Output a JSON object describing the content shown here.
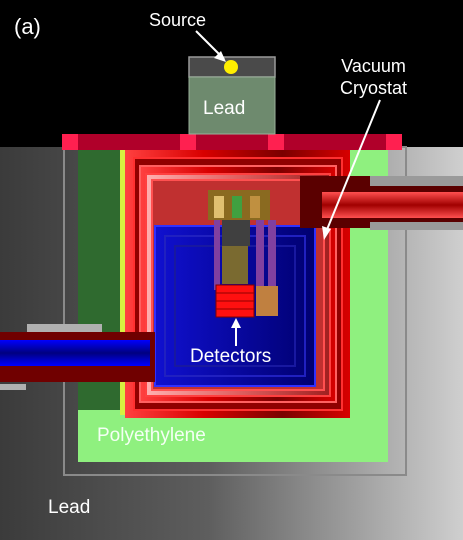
{
  "figure": {
    "panel_label": "(a)",
    "labels": {
      "source": "Source",
      "lead_top": "Lead",
      "vacuum_line1": "Vacuum",
      "vacuum_line2": "Cryostat",
      "detectors": "Detectors",
      "polyethylene": "Polyethylene",
      "lead_bottom": "Lead"
    },
    "colors": {
      "background": "#000000",
      "lead_light": "#c8c8c8",
      "lead_dark": "#3a3a3a",
      "polyethylene": "#8ff07f",
      "copper_red": "#e00000",
      "inner_blue": "#0000b0",
      "source_dot": "#ffee00",
      "lead_block": "#6e8a6e"
    }
  }
}
